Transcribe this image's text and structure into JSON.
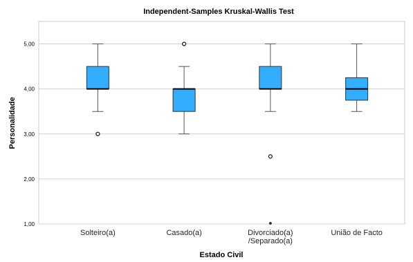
{
  "chart_data": {
    "type": "boxplot",
    "title": "Independent-Samples Kruskal-Wallis Test",
    "xlabel": "Estado Civil",
    "ylabel": "Personalidade",
    "ylim": [
      1.0,
      5.5
    ],
    "yticks": [
      "1,00",
      "2,00",
      "3,00",
      "4,00",
      "5,00"
    ],
    "ytick_values": [
      1,
      2,
      3,
      4,
      5
    ],
    "grid": true,
    "box_color": "#33adff",
    "categories": [
      {
        "lines": [
          "Solteiro(a)"
        ],
        "whisker_low": 3.5,
        "q1": 4.0,
        "median": 4.0,
        "q3": 4.5,
        "whisker_high": 5.0,
        "outliers": [
          3.0
        ],
        "extremes": []
      },
      {
        "lines": [
          "Casado(a)"
        ],
        "whisker_low": 3.0,
        "q1": 3.5,
        "median": 4.0,
        "q3": 4.0,
        "whisker_high": 4.5,
        "outliers": [
          5.0
        ],
        "extremes": []
      },
      {
        "lines": [
          "Divorciado(a)",
          "/Separado(a)"
        ],
        "whisker_low": 3.5,
        "q1": 4.0,
        "median": 4.0,
        "q3": 4.5,
        "whisker_high": 5.0,
        "outliers": [
          2.5
        ],
        "extremes": [
          1.0
        ]
      },
      {
        "lines": [
          "União de Facto"
        ],
        "whisker_low": 3.5,
        "q1": 3.75,
        "median": 4.0,
        "q3": 4.25,
        "whisker_high": 5.0,
        "outliers": [],
        "extremes": []
      }
    ]
  }
}
